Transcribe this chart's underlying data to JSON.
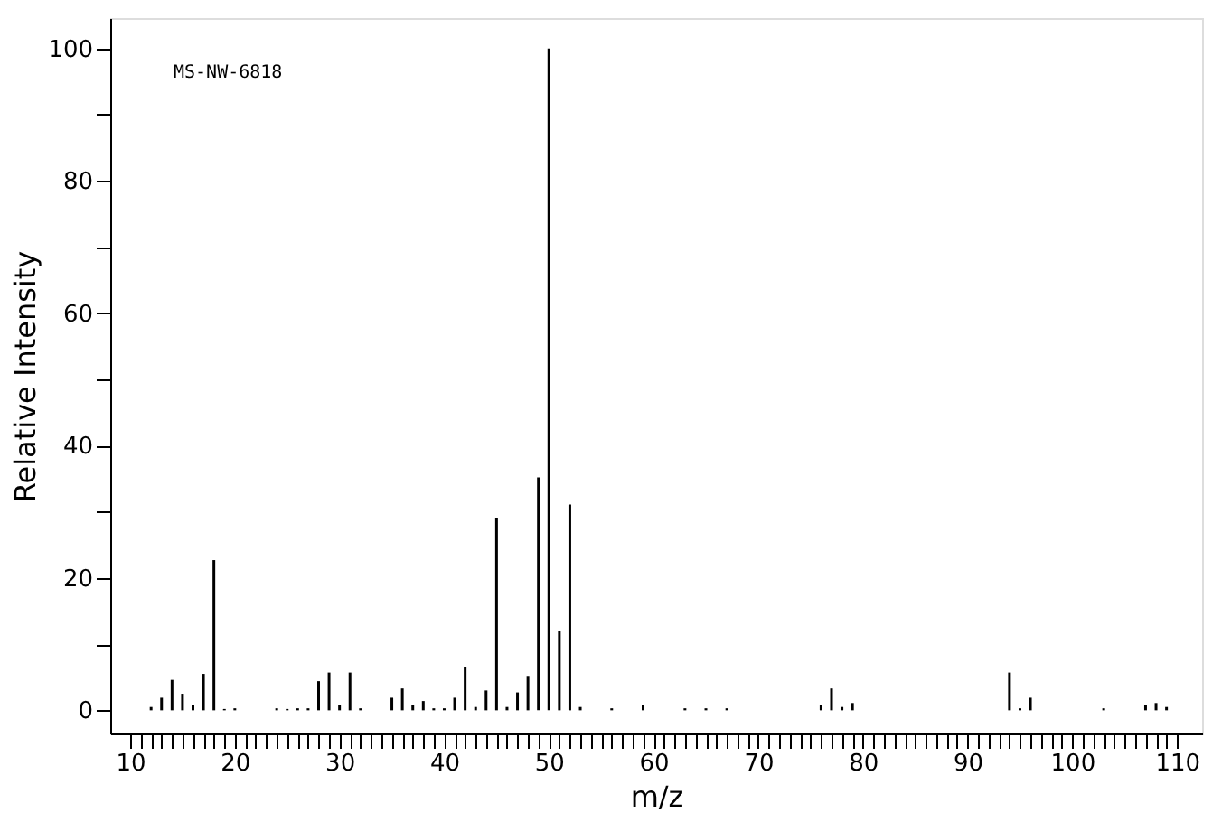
{
  "chart_data": {
    "type": "bar",
    "xlabel": "m/z",
    "ylabel": "Relative Intensity",
    "annotations": [
      "MS-NW-6818"
    ],
    "x": [
      12,
      13,
      14,
      15,
      16,
      17,
      18,
      19,
      20,
      24,
      25,
      26,
      27,
      28,
      29,
      30,
      31,
      32,
      35,
      36,
      37,
      38,
      39,
      40,
      41,
      42,
      43,
      44,
      45,
      46,
      47,
      48,
      49,
      50,
      51,
      52,
      53,
      56,
      59,
      63,
      65,
      67,
      76,
      77,
      78,
      79,
      94,
      95,
      96,
      103,
      107,
      108,
      109
    ],
    "series": [
      {
        "color": "#000000",
        "values": [
          0.5,
          1.9,
          4.6,
          2.5,
          0.8,
          5.5,
          22.7,
          0.2,
          0.3,
          0.3,
          0.2,
          0.3,
          0.3,
          4.4,
          5.7,
          0.8,
          5.7,
          0.3,
          1.9,
          3.3,
          0.8,
          1.4,
          0.3,
          0.3,
          1.9,
          6.6,
          0.5,
          3.0,
          29.0,
          0.5,
          2.7,
          5.2,
          35.2,
          100,
          12.0,
          31.1,
          0.5,
          0.3,
          0.8,
          0.3,
          0.3,
          0.3,
          0.8,
          3.3,
          0.5,
          1.1,
          5.7,
          0.3,
          1.9,
          0.3,
          0.8,
          1.1,
          0.5
        ]
      }
    ],
    "xlim": [
      8.1,
      112.4
    ],
    "ylim": [
      -3.5,
      104.6
    ],
    "xticks": [
      10,
      {
        "value": 11,
        "label": null
      },
      {
        "value": 12,
        "label": null
      },
      {
        "value": 13,
        "label": null
      },
      {
        "value": 14,
        "label": null
      },
      {
        "value": 15,
        "label": null
      },
      {
        "value": 16,
        "label": null
      },
      {
        "value": 17,
        "label": null
      },
      {
        "value": 18,
        "label": null
      },
      {
        "value": 19,
        "label": null
      },
      20,
      {
        "value": 21,
        "label": null
      },
      {
        "value": 22,
        "label": null
      },
      {
        "value": 23,
        "label": null
      },
      {
        "value": 24,
        "label": null
      },
      {
        "value": 25,
        "label": null
      },
      {
        "value": 26,
        "label": null
      },
      {
        "value": 27,
        "label": null
      },
      {
        "value": 28,
        "label": null
      },
      {
        "value": 29,
        "label": null
      },
      30,
      {
        "value": 31,
        "label": null
      },
      {
        "value": 32,
        "label": null
      },
      {
        "value": 33,
        "label": null
      },
      {
        "value": 34,
        "label": null
      },
      {
        "value": 35,
        "label": null
      },
      {
        "value": 36,
        "label": null
      },
      {
        "value": 37,
        "label": null
      },
      {
        "value": 38,
        "label": null
      },
      {
        "value": 39,
        "label": null
      },
      40,
      {
        "value": 41,
        "label": null
      },
      {
        "value": 42,
        "label": null
      },
      {
        "value": 43,
        "label": null
      },
      {
        "value": 44,
        "label": null
      },
      {
        "value": 45,
        "label": null
      },
      {
        "value": 46,
        "label": null
      },
      {
        "value": 47,
        "label": null
      },
      {
        "value": 48,
        "label": null
      },
      {
        "value": 49,
        "label": null
      },
      50,
      {
        "value": 51,
        "label": null
      },
      {
        "value": 52,
        "label": null
      },
      {
        "value": 53,
        "label": null
      },
      {
        "value": 54,
        "label": null
      },
      {
        "value": 55,
        "label": null
      },
      {
        "value": 56,
        "label": null
      },
      {
        "value": 57,
        "label": null
      },
      {
        "value": 58,
        "label": null
      },
      {
        "value": 59,
        "label": null
      },
      60,
      {
        "value": 61,
        "label": null
      },
      {
        "value": 62,
        "label": null
      },
      {
        "value": 63,
        "label": null
      },
      {
        "value": 64,
        "label": null
      },
      {
        "value": 65,
        "label": null
      },
      {
        "value": 66,
        "label": null
      },
      {
        "value": 67,
        "label": null
      },
      {
        "value": 68,
        "label": null
      },
      {
        "value": 69,
        "label": null
      },
      70,
      {
        "value": 71,
        "label": null
      },
      {
        "value": 72,
        "label": null
      },
      {
        "value": 73,
        "label": null
      },
      {
        "value": 74,
        "label": null
      },
      {
        "value": 75,
        "label": null
      },
      {
        "value": 76,
        "label": null
      },
      {
        "value": 77,
        "label": null
      },
      {
        "value": 78,
        "label": null
      },
      {
        "value": 79,
        "label": null
      },
      80,
      {
        "value": 81,
        "label": null
      },
      {
        "value": 82,
        "label": null
      },
      {
        "value": 83,
        "label": null
      },
      {
        "value": 84,
        "label": null
      },
      {
        "value": 85,
        "label": null
      },
      {
        "value": 86,
        "label": null
      },
      {
        "value": 87,
        "label": null
      },
      {
        "value": 88,
        "label": null
      },
      {
        "value": 89,
        "label": null
      },
      90,
      {
        "value": 91,
        "label": null
      },
      {
        "value": 92,
        "label": null
      },
      {
        "value": 93,
        "label": null
      },
      {
        "value": 94,
        "label": null
      },
      {
        "value": 95,
        "label": null
      },
      {
        "value": 96,
        "label": null
      },
      {
        "value": 97,
        "label": null
      },
      {
        "value": 98,
        "label": null
      },
      {
        "value": 99,
        "label": null
      },
      100,
      {
        "value": 101,
        "label": null
      },
      {
        "value": 102,
        "label": null
      },
      {
        "value": 103,
        "label": null
      },
      {
        "value": 104,
        "label": null
      },
      {
        "value": 105,
        "label": null
      },
      {
        "value": 106,
        "label": null
      },
      {
        "value": 107,
        "label": null
      },
      {
        "value": 108,
        "label": null
      },
      {
        "value": 109,
        "label": null
      },
      110
    ],
    "yticks": [
      0,
      {
        "value": 10,
        "label": null
      },
      20,
      {
        "value": 30,
        "label": null
      },
      40,
      {
        "value": 50,
        "label": null
      },
      60,
      {
        "value": 70,
        "label": null
      },
      80,
      {
        "value": 90,
        "label": null
      },
      100
    ],
    "grid": false
  }
}
